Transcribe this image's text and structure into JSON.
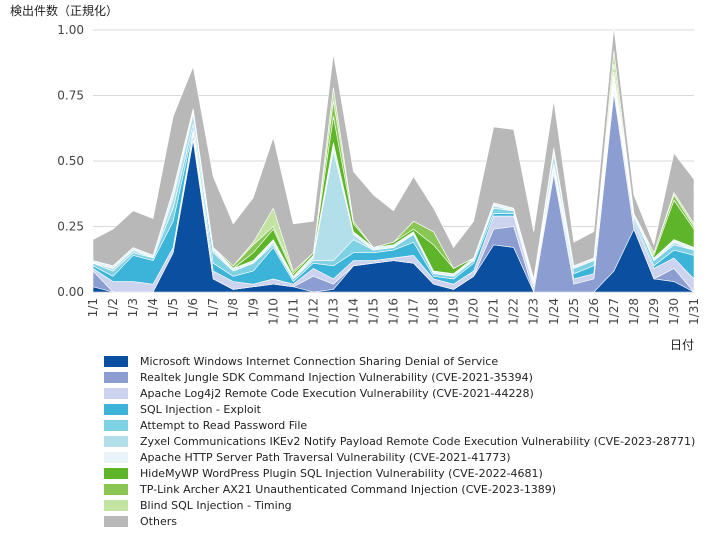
{
  "chart_data": {
    "type": "area",
    "stacked": true,
    "ylabel": "検出件数（正規化）",
    "xlabel": "日付",
    "ylim": [
      0,
      1.0
    ],
    "yticks": [
      "0.00",
      "0.25",
      "0.50",
      "0.75",
      "1.00"
    ],
    "grid": "horizontal",
    "legend_position": "bottom",
    "categories": [
      "1/1",
      "1/2",
      "1/3",
      "1/4",
      "1/5",
      "1/6",
      "1/7",
      "1/8",
      "1/9",
      "1/10",
      "1/11",
      "1/12",
      "1/13",
      "1/14",
      "1/15",
      "1/16",
      "1/17",
      "1/18",
      "1/19",
      "1/20",
      "1/21",
      "1/22",
      "1/23",
      "1/24",
      "1/25",
      "1/26",
      "1/27",
      "1/28",
      "1/29",
      "1/30",
      "1/31"
    ],
    "series": [
      {
        "name": "Microsoft Windows Internet Connection Sharing Denial of Service",
        "color": "#0a4fa0",
        "values": [
          0.02,
          0,
          0,
          0,
          0.15,
          0.58,
          0.05,
          0.01,
          0.02,
          0.03,
          0.02,
          0,
          0.01,
          0.1,
          0.11,
          0.12,
          0.11,
          0.03,
          0.01,
          0.06,
          0.18,
          0.17,
          0,
          0,
          0,
          0,
          0.08,
          0.24,
          0.05,
          0.04,
          0
        ]
      },
      {
        "name": "Realtek Jungle SDK Command Injection Vulnerability (CVE-2021-35394)",
        "color": "#8b9dd1",
        "values": [
          0.06,
          0,
          0,
          0,
          0,
          0.02,
          0,
          0,
          0,
          0,
          0,
          0.06,
          0.02,
          0,
          0,
          0,
          0,
          0,
          0,
          0,
          0.06,
          0.08,
          0,
          0.45,
          0.03,
          0.05,
          0.68,
          0,
          0,
          0.05,
          0
        ]
      },
      {
        "name": "Apache Log4j2 Remote Code Execution Vulnerability (CVE-2021-44228)",
        "color": "#cbd3ee",
        "values": [
          0.01,
          0.04,
          0.04,
          0.03,
          0.02,
          0.01,
          0.03,
          0.03,
          0.01,
          0.02,
          0.01,
          0.03,
          0.02,
          0.02,
          0.01,
          0.01,
          0.03,
          0.02,
          0.02,
          0.02,
          0.05,
          0.04,
          0.02,
          0.02,
          0.02,
          0.02,
          0.02,
          0.03,
          0.04,
          0.04,
          0.05
        ]
      },
      {
        "name": "SQL Injection - Exploit",
        "color": "#3cb3d9",
        "values": [
          0.01,
          0.02,
          0.1,
          0.09,
          0.1,
          0.01,
          0.03,
          0.02,
          0.05,
          0.12,
          0.01,
          0.02,
          0.05,
          0.03,
          0.03,
          0.03,
          0.05,
          0.01,
          0.02,
          0.03,
          0.01,
          0.01,
          0.01,
          0.01,
          0.02,
          0.03,
          0.01,
          0.01,
          0.01,
          0.03,
          0.09
        ]
      },
      {
        "name": "Attempt to Read Password File",
        "color": "#7ed0e3",
        "values": [
          0.01,
          0.02,
          0.01,
          0.01,
          0.05,
          0.02,
          0.04,
          0.02,
          0.03,
          0.01,
          0.01,
          0.01,
          0.02,
          0.05,
          0.01,
          0.01,
          0.03,
          0.01,
          0.01,
          0.01,
          0.02,
          0.01,
          0.01,
          0.01,
          0.02,
          0.02,
          0.01,
          0.01,
          0.02,
          0.02,
          0.02
        ]
      },
      {
        "name": "Zyxel Communications IKEv2 Notify Payload Remote Code Execution Vulnerability (CVE-2023-28771)",
        "color": "#b3dfea",
        "values": [
          0,
          0.01,
          0.01,
          0,
          0.04,
          0.04,
          0.01,
          0,
          0,
          0.01,
          0,
          0.01,
          0.42,
          0.02,
          0,
          0,
          0,
          0,
          0,
          0,
          0.01,
          0,
          0,
          0.04,
          0,
          0,
          0.02,
          0,
          0,
          0.01,
          0
        ]
      },
      {
        "name": "Apache HTTP Server Path Traversal Vulnerability (CVE-2021-41773)",
        "color": "#e8f4f8",
        "values": [
          0.01,
          0.01,
          0.01,
          0.01,
          0.03,
          0.01,
          0.01,
          0.01,
          0.01,
          0.01,
          0.01,
          0.01,
          0.03,
          0.01,
          0.01,
          0.01,
          0.01,
          0.01,
          0.01,
          0.01,
          0.01,
          0.01,
          0.01,
          0.02,
          0.01,
          0.01,
          0.01,
          0.01,
          0.01,
          0.01,
          0.01
        ]
      },
      {
        "name": "HideMyWP WordPress Plugin SQL Injection Vulnerability (CVE-2022-4681)",
        "color": "#5fb52a",
        "values": [
          0,
          0,
          0,
          0,
          0,
          0,
          0,
          0,
          0.03,
          0.04,
          0.01,
          0.01,
          0.1,
          0.03,
          0,
          0.01,
          0.01,
          0.1,
          0.02,
          0,
          0,
          0,
          0,
          0,
          0,
          0,
          0.01,
          0,
          0.01,
          0.15,
          0.07
        ]
      },
      {
        "name": "TP-Link Archer AX21 Unauthenticated Command Injection (CVE-2023-1389)",
        "color": "#8ac653",
        "values": [
          0,
          0,
          0,
          0,
          0,
          0,
          0,
          0.01,
          0.03,
          0.01,
          0.01,
          0,
          0.06,
          0.01,
          0,
          0,
          0.03,
          0.05,
          0,
          0,
          0,
          0,
          0,
          0,
          0,
          0,
          0.03,
          0,
          0.01,
          0.02,
          0.01
        ]
      },
      {
        "name": "Blind SQL Injection - Timing",
        "color": "#c2e3a1",
        "values": [
          0,
          0,
          0,
          0,
          0,
          0.01,
          0,
          0,
          0.01,
          0.07,
          0,
          0,
          0.05,
          0,
          0,
          0,
          0,
          0,
          0,
          0,
          0,
          0,
          0,
          0,
          0,
          0,
          0.05,
          0,
          0,
          0.01,
          0.01
        ]
      },
      {
        "name": "Others",
        "color": "#b8b8b8",
        "values": [
          0.08,
          0.14,
          0.14,
          0.14,
          0.28,
          0.16,
          0.27,
          0.16,
          0.17,
          0.27,
          0.18,
          0.12,
          0.13,
          0.19,
          0.2,
          0.12,
          0.17,
          0.09,
          0.08,
          0.14,
          0.29,
          0.3,
          0.18,
          0.18,
          0.09,
          0.1,
          0.09,
          0.07,
          0.03,
          0.15,
          0.17
        ]
      }
    ]
  }
}
